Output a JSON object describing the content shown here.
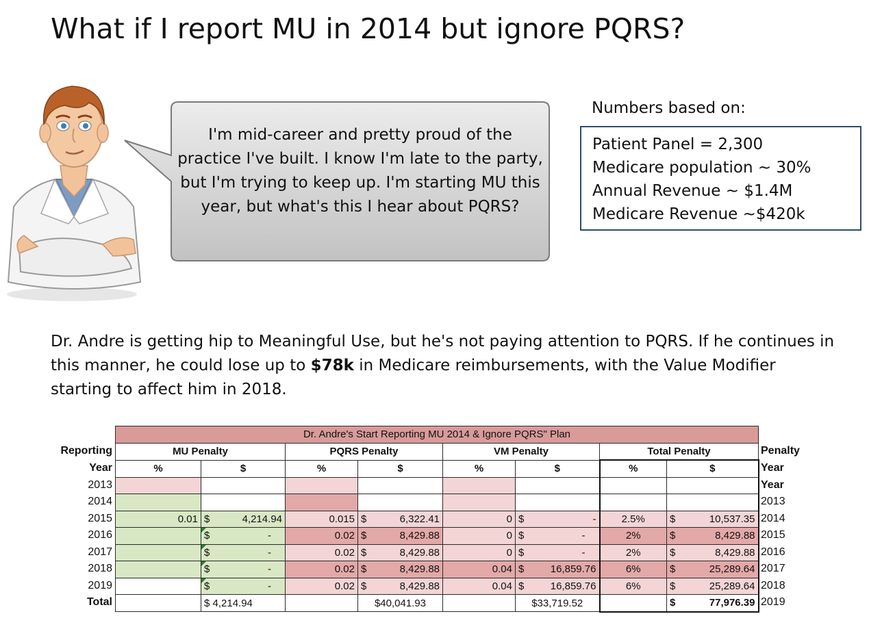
{
  "title": "What if I report MU in 2014 but ignore PQRS?",
  "bubble": {
    "text": "I'm mid-career and pretty proud of the practice I've built. I know I'm late to the party, but I'm trying to keep up. I'm starting MU this year, but what's this I hear about PQRS?"
  },
  "numbers": {
    "label": "Numbers based on:",
    "lines": [
      "Patient Panel = 2,300",
      "Medicare population ~ 30%",
      "Annual Revenue ~ $1.4M",
      "Medicare Revenue ~$420k"
    ]
  },
  "paragraph": {
    "before": "Dr. Andre is getting hip to Meaningful Use, but he's not paying attention to PQRS. If he continues in this manner, he could lose up to ",
    "bold": "$78k",
    "after": " in Medicare reimbursements, with the Value Modifier starting to affect him in 2018."
  },
  "table": {
    "caption": "Dr. Andre's Start Reporting MU 2014 & Ignore PQRS\" Plan",
    "groups": [
      "MU Penalty",
      "PQRS Penalty",
      "VM Penalty",
      "Total Penalty"
    ],
    "subheaders": [
      "%",
      "$",
      "%",
      "$",
      "%",
      "$",
      "%",
      "$"
    ],
    "left_labels": {
      "reporting": "Reporting",
      "year": "Year",
      "years": [
        "2013",
        "2014",
        "2015",
        "2016",
        "2017",
        "2018",
        "2019"
      ],
      "total": "Total"
    },
    "right_labels": {
      "penalty": "Penalty",
      "year1": "Year",
      "year2": "Year",
      "years": [
        "2013",
        "2014",
        "2015",
        "2016",
        "2017",
        "2018",
        "2019"
      ]
    },
    "rows": [
      {
        "mu_pct": "",
        "mu_usd": "",
        "pqrs_pct": "",
        "pqrs_usd": "",
        "vm_pct": "",
        "vm_usd": "",
        "tot_pct": "",
        "tot_usd": ""
      },
      {
        "mu_pct": "",
        "mu_usd": "",
        "pqrs_pct": "",
        "pqrs_usd": "",
        "vm_pct": "",
        "vm_usd": "",
        "tot_pct": "",
        "tot_usd": ""
      },
      {
        "mu_pct": "0.01",
        "mu_usd": "4,214.94",
        "pqrs_pct": "0.015",
        "pqrs_usd": "6,322.41",
        "vm_pct": "0",
        "vm_usd": "-",
        "tot_pct": "2.5%",
        "tot_usd": "10,537.35"
      },
      {
        "mu_pct": "",
        "mu_usd": "-",
        "pqrs_pct": "0.02",
        "pqrs_usd": "8,429.88",
        "vm_pct": "0",
        "vm_usd": "-",
        "tot_pct": "2%",
        "tot_usd": "8,429.88"
      },
      {
        "mu_pct": "",
        "mu_usd": "-",
        "pqrs_pct": "0.02",
        "pqrs_usd": "8,429.88",
        "vm_pct": "0",
        "vm_usd": "-",
        "tot_pct": "2%",
        "tot_usd": "8,429.88"
      },
      {
        "mu_pct": "",
        "mu_usd": "-",
        "pqrs_pct": "0.02",
        "pqrs_usd": "8,429.88",
        "vm_pct": "0.04",
        "vm_usd": "16,859.76",
        "tot_pct": "6%",
        "tot_usd": "25,289.64"
      },
      {
        "mu_pct": "",
        "mu_usd": "-",
        "pqrs_pct": "0.02",
        "pqrs_usd": "8,429.88",
        "vm_pct": "0.04",
        "vm_usd": "16,859.76",
        "tot_pct": "6%",
        "tot_usd": "25,289.64"
      }
    ],
    "totals": {
      "mu_usd": "4,214.94",
      "pqrs_usd": "$40,041.93",
      "vm_usd": "$33,719.52",
      "tot_usd": "77,976.39"
    },
    "dollar": "$",
    "colors": {
      "caption": "#d99a9a",
      "green": "#d8e8c4",
      "pink": "#f3d5d5",
      "red": "#e3a8a8"
    }
  }
}
